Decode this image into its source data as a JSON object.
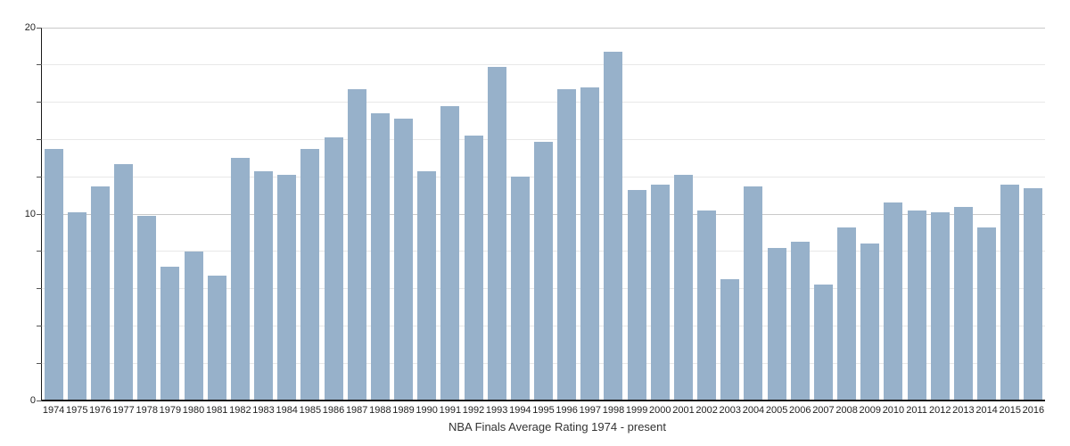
{
  "chart_data": {
    "type": "bar",
    "title": "NBA Finals Average Rating 1974 - present",
    "xlabel": "",
    "ylabel": "",
    "categories": [
      "1974",
      "1975",
      "1976",
      "1977",
      "1978",
      "1979",
      "1980",
      "1981",
      "1982",
      "1983",
      "1984",
      "1985",
      "1986",
      "1987",
      "1988",
      "1989",
      "1990",
      "1991",
      "1992",
      "1993",
      "1994",
      "1995",
      "1996",
      "1997",
      "1998",
      "1999",
      "2000",
      "2001",
      "2002",
      "2003",
      "2004",
      "2005",
      "2006",
      "2007",
      "2008",
      "2009",
      "2010",
      "2011",
      "2012",
      "2013",
      "2014",
      "2015",
      "2016"
    ],
    "values": [
      13.5,
      10.1,
      11.5,
      12.7,
      9.9,
      7.2,
      8.0,
      6.7,
      13.0,
      12.3,
      12.1,
      13.5,
      14.1,
      16.7,
      15.4,
      15.1,
      12.3,
      15.8,
      14.2,
      17.9,
      12.0,
      13.9,
      16.7,
      16.8,
      18.7,
      11.3,
      11.6,
      12.1,
      10.2,
      6.5,
      11.5,
      8.2,
      8.5,
      6.2,
      9.3,
      8.4,
      10.6,
      10.2,
      10.1,
      10.4,
      9.3,
      11.6,
      11.4
    ],
    "ylim": [
      0,
      20
    ],
    "grid": true,
    "grid_step": 2,
    "y_ticks": [
      {
        "v": 0,
        "label": "0"
      },
      {
        "v": 10,
        "label": "10"
      },
      {
        "v": 20,
        "label": "20"
      }
    ],
    "legend": "none",
    "colors": {
      "bar": "#97b1ca",
      "minor_grid": "#e8e8e8",
      "major_grid": "#c9c9c9",
      "axis": "#1a1a1a",
      "tick": "#555555",
      "label_text": "#222222",
      "title_text": "#333333"
    }
  }
}
